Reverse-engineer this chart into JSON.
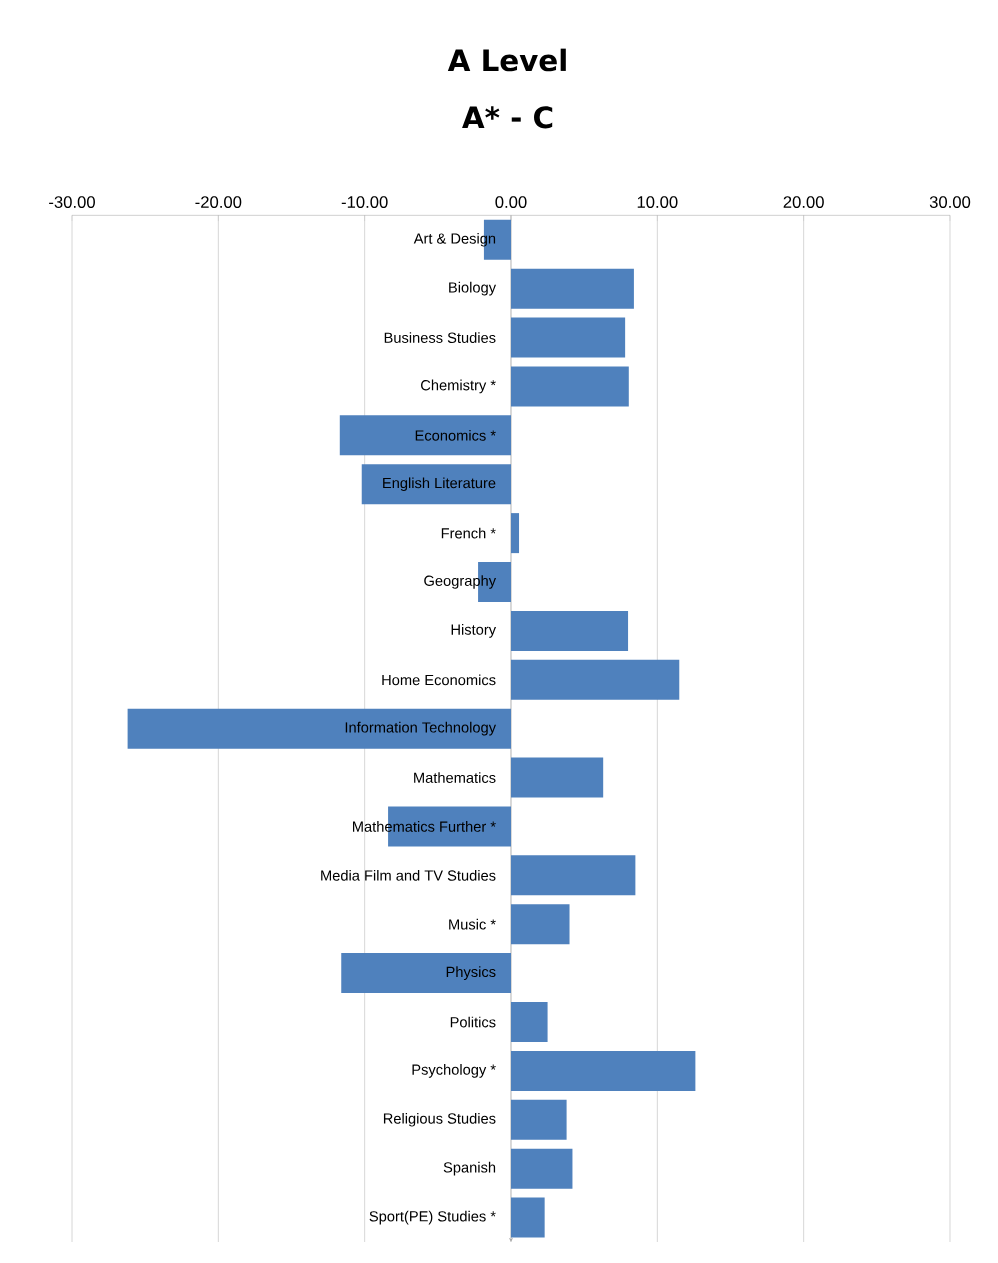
{
  "chart_data": {
    "type": "bar",
    "orientation": "horizontal",
    "title": "A Level",
    "subtitle": "A* - C",
    "categories": [
      "Art & Design",
      "Biology",
      "Business Studies",
      "Chemistry *",
      "Economics *",
      "English Literature",
      "French *",
      "Geography",
      "History",
      "Home Economics",
      "Information Technology",
      "Mathematics",
      "Mathematics Further *",
      "Media Film and TV Studies",
      "Music *",
      "Physics",
      "Politics",
      "Psychology *",
      "Religious Studies",
      "Spanish",
      "Sport(PE) Studies *"
    ],
    "values": [
      -1.85,
      8.4,
      7.8,
      8.05,
      -11.7,
      -10.2,
      0.55,
      -2.25,
      8.0,
      11.5,
      -26.2,
      6.3,
      -8.4,
      8.5,
      4.0,
      -11.6,
      2.5,
      12.6,
      3.8,
      4.2,
      2.3
    ],
    "color": "#4f81bd",
    "xlim": [
      -30,
      30
    ],
    "xticks": [
      {
        "value": -30,
        "label": "-30.00"
      },
      {
        "value": -20,
        "label": "-20.00"
      },
      {
        "value": -10,
        "label": "-10.00"
      },
      {
        "value": 0,
        "label": "0.00"
      },
      {
        "value": 10,
        "label": "10.00"
      },
      {
        "value": 20,
        "label": "20.00"
      },
      {
        "value": 30,
        "label": "30.00"
      }
    ],
    "grid": "x"
  }
}
